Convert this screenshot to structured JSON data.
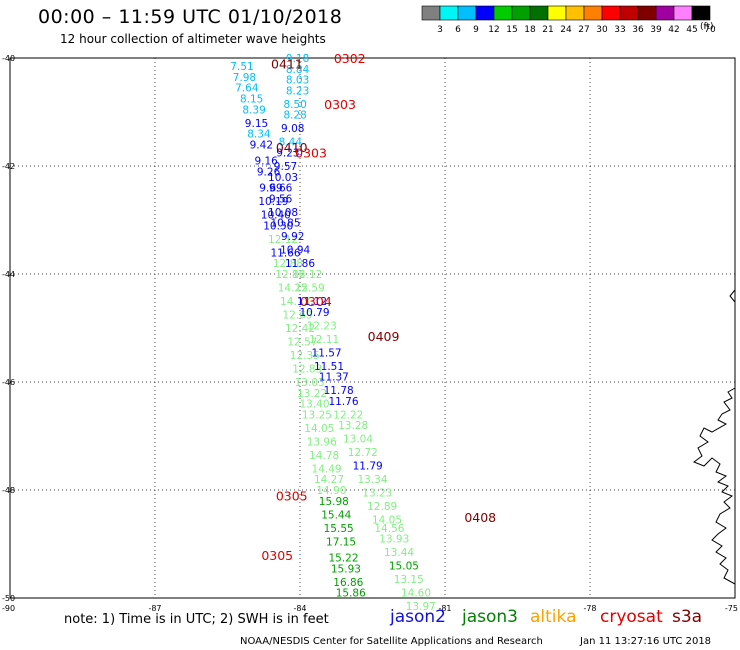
{
  "header": {
    "title": "00:00 – 11:59 UTC 01/10/2018",
    "subtitle": "12 hour collection of altimeter wave heights"
  },
  "colorbar": {
    "unit": "(ft)",
    "ticks": [
      "3",
      "6",
      "9",
      "12",
      "15",
      "18",
      "21",
      "24",
      "27",
      "30",
      "33",
      "36",
      "39",
      "42",
      "45",
      "70"
    ],
    "colors": [
      "#808080",
      "#00f5f5",
      "#00bfff",
      "#0000ff",
      "#00cc00",
      "#00a000",
      "#007000",
      "#ffff00",
      "#ffc000",
      "#ff8000",
      "#ff0000",
      "#c00000",
      "#800000",
      "#a000a0",
      "#ff80ff",
      "#000000"
    ]
  },
  "map": {
    "lat_range": [
      -50,
      -40
    ],
    "lon_range": [
      -90,
      -75
    ],
    "lat_ticks": [
      "-40",
      "-42",
      "-44",
      "-46",
      "-48",
      "-50"
    ],
    "lon_ticks": [
      "-90",
      "-87",
      "-84",
      "-81",
      "-78",
      "-75"
    ]
  },
  "legend": {
    "satellites": [
      {
        "name": "jason2",
        "color": "#1010e0"
      },
      {
        "name": "jason3",
        "color": "#008000"
      },
      {
        "name": "altika",
        "color": "#ffa000"
      },
      {
        "name": "cryosat",
        "color": "#e00000"
      },
      {
        "name": "s3a",
        "color": "#800000"
      }
    ]
  },
  "footer": {
    "note": "note:  1) Time is in UTC;  2) SWH is in feet",
    "credit": "NOAA/NESDIS Center for Satellite Applications and Research",
    "timestamp": "Jan 11 13:27:16 UTC 2018"
  },
  "time_labels": [
    {
      "text": "0302",
      "lon": -83.3,
      "lat": -40.0,
      "color": "#e00000"
    },
    {
      "text": "0411",
      "lon": -84.6,
      "lat": -40.1,
      "color": "#800000"
    },
    {
      "text": "0303",
      "lon": -83.5,
      "lat": -40.85,
      "color": "#e00000"
    },
    {
      "text": "0410",
      "lon": -84.5,
      "lat": -41.65,
      "color": "#800000"
    },
    {
      "text": "0303",
      "lon": -84.1,
      "lat": -41.75,
      "color": "#e00000"
    },
    {
      "text": "0304",
      "lon": -84.0,
      "lat": -44.5,
      "color": "#e00000"
    },
    {
      "text": "0409",
      "lon": -82.6,
      "lat": -45.15,
      "color": "#800000"
    },
    {
      "text": "0305",
      "lon": -84.5,
      "lat": -48.1,
      "color": "#e00000"
    },
    {
      "text": "0408",
      "lon": -80.6,
      "lat": -48.5,
      "color": "#800000"
    },
    {
      "text": "0305",
      "lon": -84.8,
      "lat": -49.2,
      "color": "#e00000"
    }
  ],
  "swh_values": [
    {
      "text": "7.51",
      "lon": -85.2,
      "lat": -40.15,
      "color": "#00bfff"
    },
    {
      "text": "7.98",
      "lon": -85.15,
      "lat": -40.35,
      "color": "#00bfff"
    },
    {
      "text": "7.64",
      "lon": -85.1,
      "lat": -40.55,
      "color": "#00bfff"
    },
    {
      "text": "8.15",
      "lon": -85.0,
      "lat": -40.75,
      "color": "#00bfff"
    },
    {
      "text": "8.39",
      "lon": -84.95,
      "lat": -40.95,
      "color": "#00bfff"
    },
    {
      "text": "9.15",
      "lon": -84.9,
      "lat": -41.2,
      "color": "#0000ff"
    },
    {
      "text": "8.34",
      "lon": -84.85,
      "lat": -41.4,
      "color": "#00bfff"
    },
    {
      "text": "9.42",
      "lon": -84.8,
      "lat": -41.6,
      "color": "#0000ff"
    },
    {
      "text": "9.16",
      "lon": -84.7,
      "lat": -41.9,
      "color": "#0000ff"
    },
    {
      "text": "9.26",
      "lon": -84.65,
      "lat": -42.1,
      "color": "#0000ff"
    },
    {
      "text": "9.69",
      "lon": -84.6,
      "lat": -42.4,
      "color": "#0000ff"
    },
    {
      "text": "10.19",
      "lon": -84.55,
      "lat": -42.65,
      "color": "#0000ff"
    },
    {
      "text": "10.40",
      "lon": -84.5,
      "lat": -42.9,
      "color": "#0000ff"
    },
    {
      "text": "10.30",
      "lon": -84.45,
      "lat": -43.1,
      "color": "#0000ff"
    },
    {
      "text": "12.12",
      "lon": -84.35,
      "lat": -43.35,
      "color": "#80f080"
    },
    {
      "text": "11.66",
      "lon": -84.3,
      "lat": -43.6,
      "color": "#0000ff"
    },
    {
      "text": "12.88",
      "lon": -84.25,
      "lat": -43.8,
      "color": "#80f080"
    },
    {
      "text": "12.86",
      "lon": -84.2,
      "lat": -44.0,
      "color": "#80f080"
    },
    {
      "text": "14.25",
      "lon": -84.15,
      "lat": -44.25,
      "color": "#80f080"
    },
    {
      "text": "14.13",
      "lon": -84.1,
      "lat": -44.5,
      "color": "#80f080"
    },
    {
      "text": "12.69",
      "lon": -84.05,
      "lat": -44.75,
      "color": "#80f080"
    },
    {
      "text": "12.42",
      "lon": -84.0,
      "lat": -45.0,
      "color": "#80f080"
    },
    {
      "text": "12.57",
      "lon": -83.95,
      "lat": -45.25,
      "color": "#80f080"
    },
    {
      "text": "12.35",
      "lon": -83.9,
      "lat": -45.5,
      "color": "#80f080"
    },
    {
      "text": "12.83",
      "lon": -83.85,
      "lat": -45.75,
      "color": "#80f080"
    },
    {
      "text": "13.03",
      "lon": -83.8,
      "lat": -46.0,
      "color": "#80f080"
    },
    {
      "text": "13.22",
      "lon": -83.75,
      "lat": -46.2,
      "color": "#80f080"
    },
    {
      "text": "13.40",
      "lon": -83.7,
      "lat": -46.4,
      "color": "#80f080"
    },
    {
      "text": "13.25",
      "lon": -83.65,
      "lat": -46.6,
      "color": "#80f080"
    },
    {
      "text": "14.05",
      "lon": -83.6,
      "lat": -46.85,
      "color": "#80f080"
    },
    {
      "text": "13.96",
      "lon": -83.55,
      "lat": -47.1,
      "color": "#80f080"
    },
    {
      "text": "14.78",
      "lon": -83.5,
      "lat": -47.35,
      "color": "#80f080"
    },
    {
      "text": "14.49",
      "lon": -83.45,
      "lat": -47.6,
      "color": "#80f080"
    },
    {
      "text": "14.27",
      "lon": -83.4,
      "lat": -47.8,
      "color": "#80f080"
    },
    {
      "text": "14.90",
      "lon": -83.35,
      "lat": -48.0,
      "color": "#80f080"
    },
    {
      "text": "15.98",
      "lon": -83.3,
      "lat": -48.2,
      "color": "#00a000"
    },
    {
      "text": "15.44",
      "lon": -83.25,
      "lat": -48.45,
      "color": "#00a000"
    },
    {
      "text": "15.55",
      "lon": -83.2,
      "lat": -48.7,
      "color": "#00a000"
    },
    {
      "text": "17.15",
      "lon": -83.15,
      "lat": -48.95,
      "color": "#00a000"
    },
    {
      "text": "15.22",
      "lon": -83.1,
      "lat": -49.25,
      "color": "#00a000"
    },
    {
      "text": "15.93",
      "lon": -83.05,
      "lat": -49.45,
      "color": "#00a000"
    },
    {
      "text": "16.86",
      "lon": -83.0,
      "lat": -49.7,
      "color": "#00a000"
    },
    {
      "text": "15.86",
      "lon": -82.95,
      "lat": -49.9,
      "color": "#00a000"
    },
    {
      "text": "9.18",
      "lon": -84.05,
      "lat": -40.0,
      "color": "#00bfff"
    },
    {
      "text": "8.84",
      "lon": -84.05,
      "lat": -40.2,
      "color": "#00bfff"
    },
    {
      "text": "8.03",
      "lon": -84.05,
      "lat": -40.4,
      "color": "#00bfff"
    },
    {
      "text": "8.23",
      "lon": -84.05,
      "lat": -40.6,
      "color": "#00bfff"
    },
    {
      "text": "8.50",
      "lon": -84.1,
      "lat": -40.85,
      "color": "#00bfff"
    },
    {
      "text": "8.28",
      "lon": -84.1,
      "lat": -41.05,
      "color": "#00bfff"
    },
    {
      "text": "9.08",
      "lon": -84.15,
      "lat": -41.3,
      "color": "#0000ff"
    },
    {
      "text": "8.44",
      "lon": -84.2,
      "lat": -41.55,
      "color": "#00bfff"
    },
    {
      "text": "9.23",
      "lon": -84.25,
      "lat": -41.75,
      "color": "#0000ff"
    },
    {
      "text": "9.57",
      "lon": -84.3,
      "lat": -42.0,
      "color": "#0000ff"
    },
    {
      "text": "10.03",
      "lon": -84.35,
      "lat": -42.2,
      "color": "#0000ff"
    },
    {
      "text": "9.66",
      "lon": -84.4,
      "lat": -42.4,
      "color": "#0000ff"
    },
    {
      "text": "9.56",
      "lon": -84.4,
      "lat": -42.6,
      "color": "#0000ff"
    },
    {
      "text": "10.08",
      "lon": -84.35,
      "lat": -42.85,
      "color": "#0000ff"
    },
    {
      "text": "10.85",
      "lon": -84.3,
      "lat": -43.05,
      "color": "#0000ff"
    },
    {
      "text": "9.92",
      "lon": -84.15,
      "lat": -43.3,
      "color": "#0000ff"
    },
    {
      "text": "10.94",
      "lon": -84.1,
      "lat": -43.55,
      "color": "#0000ff"
    },
    {
      "text": "11.86",
      "lon": -84.0,
      "lat": -43.8,
      "color": "#0000ff"
    },
    {
      "text": "12.12",
      "lon": -83.85,
      "lat": -44.0,
      "color": "#80f080"
    },
    {
      "text": "12.59",
      "lon": -83.8,
      "lat": -44.25,
      "color": "#80f080"
    },
    {
      "text": "11.12",
      "lon": -83.75,
      "lat": -44.5,
      "color": "#0000ff"
    },
    {
      "text": "10.79",
      "lon": -83.7,
      "lat": -44.7,
      "color": "#0000ff"
    },
    {
      "text": "12.23",
      "lon": -83.55,
      "lat": -44.95,
      "color": "#80f080"
    },
    {
      "text": "12.11",
      "lon": -83.5,
      "lat": -45.2,
      "color": "#80f080"
    },
    {
      "text": "11.57",
      "lon": -83.45,
      "lat": -45.45,
      "color": "#0000ff"
    },
    {
      "text": "11.51",
      "lon": -83.4,
      "lat": -45.7,
      "color": "#0000ff"
    },
    {
      "text": "11.37",
      "lon": -83.3,
      "lat": -45.9,
      "color": "#0000ff"
    },
    {
      "text": "11.78",
      "lon": -83.2,
      "lat": -46.15,
      "color": "#0000ff"
    },
    {
      "text": "11.76",
      "lon": -83.1,
      "lat": -46.35,
      "color": "#0000ff"
    },
    {
      "text": "12.22",
      "lon": -83.0,
      "lat": -46.6,
      "color": "#80f080"
    },
    {
      "text": "13.28",
      "lon": -82.9,
      "lat": -46.8,
      "color": "#80f080"
    },
    {
      "text": "13.04",
      "lon": -82.8,
      "lat": -47.05,
      "color": "#80f080"
    },
    {
      "text": "12.72",
      "lon": -82.7,
      "lat": -47.3,
      "color": "#80f080"
    },
    {
      "text": "11.79",
      "lon": -82.6,
      "lat": -47.55,
      "color": "#0000ff"
    },
    {
      "text": "13.34",
      "lon": -82.5,
      "lat": -47.8,
      "color": "#80f080"
    },
    {
      "text": "13.23",
      "lon": -82.4,
      "lat": -48.05,
      "color": "#80f080"
    },
    {
      "text": "12.89",
      "lon": -82.3,
      "lat": -48.3,
      "color": "#80f080"
    },
    {
      "text": "14.05",
      "lon": -82.2,
      "lat": -48.55,
      "color": "#80f080"
    },
    {
      "text": "14.56",
      "lon": -82.15,
      "lat": -48.7,
      "color": "#80f080"
    },
    {
      "text": "13.93",
      "lon": -82.05,
      "lat": -48.9,
      "color": "#80f080"
    },
    {
      "text": "13.44",
      "lon": -81.95,
      "lat": -49.15,
      "color": "#80f080"
    },
    {
      "text": "15.05",
      "lon": -81.85,
      "lat": -49.4,
      "color": "#00a000"
    },
    {
      "text": "13.15",
      "lon": -81.75,
      "lat": -49.65,
      "color": "#80f080"
    },
    {
      "text": "14.60",
      "lon": -81.6,
      "lat": -49.9,
      "color": "#80f080"
    },
    {
      "text": "13.97",
      "lon": -81.5,
      "lat": -50.15,
      "color": "#80f080"
    }
  ]
}
